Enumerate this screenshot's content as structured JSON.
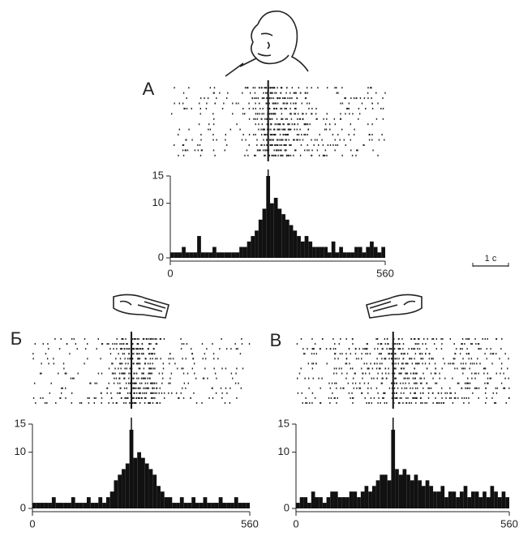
{
  "chart_data": [
    {
      "type": "histogram",
      "panel_label": "А",
      "bins": [
        0,
        10,
        20,
        30,
        40,
        50,
        60,
        70,
        80,
        90,
        100,
        110,
        120,
        130,
        140,
        150,
        160,
        170,
        180,
        190,
        200,
        210,
        220,
        230,
        240,
        250,
        260,
        270,
        280,
        290,
        300,
        310,
        320,
        330,
        340,
        350,
        360,
        370,
        380,
        390,
        400,
        410,
        420,
        430,
        440,
        450,
        460,
        470,
        480,
        490,
        500,
        510,
        520,
        530,
        540,
        550,
        560
      ],
      "values": [
        1,
        1,
        1,
        2,
        1,
        1,
        1,
        4,
        1,
        1,
        1,
        2,
        1,
        1,
        1,
        1,
        1,
        1,
        2,
        2,
        3,
        4,
        5,
        7,
        9,
        15,
        10,
        11,
        9,
        8,
        7,
        6,
        5,
        4,
        3,
        4,
        3,
        2,
        2,
        2,
        2,
        1,
        3,
        1,
        2,
        1,
        1,
        1,
        2,
        2,
        1,
        2,
        3,
        2,
        1,
        2
      ],
      "color": "#111111",
      "xlim": [
        0,
        560
      ],
      "xticks": [
        0,
        560
      ],
      "ylim": [
        0,
        15
      ],
      "yticks": [
        0,
        10,
        15
      ]
    },
    {
      "type": "histogram",
      "panel_label": "Б",
      "bins": [
        0,
        10,
        20,
        30,
        40,
        50,
        60,
        70,
        80,
        90,
        100,
        110,
        120,
        130,
        140,
        150,
        160,
        170,
        180,
        190,
        200,
        210,
        220,
        230,
        240,
        250,
        260,
        270,
        280,
        290,
        300,
        310,
        320,
        330,
        340,
        350,
        360,
        370,
        380,
        390,
        400,
        410,
        420,
        430,
        440,
        450,
        460,
        470,
        480,
        490,
        500,
        510,
        520,
        530,
        540,
        550,
        560
      ],
      "values": [
        1,
        1,
        1,
        1,
        1,
        2,
        1,
        1,
        1,
        1,
        2,
        1,
        1,
        1,
        2,
        1,
        1,
        2,
        1,
        2,
        3,
        5,
        6,
        7,
        8,
        14,
        9,
        10,
        9,
        8,
        7,
        6,
        4,
        3,
        2,
        2,
        1,
        1,
        2,
        1,
        1,
        2,
        1,
        1,
        2,
        1,
        1,
        1,
        2,
        1,
        1,
        1,
        2,
        1,
        1,
        1
      ],
      "color": "#111111",
      "xlim": [
        0,
        560
      ],
      "xticks": [
        0,
        560
      ],
      "ylim": [
        0,
        15
      ],
      "yticks": [
        0,
        10,
        15
      ]
    },
    {
      "type": "histogram",
      "panel_label": "В",
      "bins": [
        0,
        10,
        20,
        30,
        40,
        50,
        60,
        70,
        80,
        90,
        100,
        110,
        120,
        130,
        140,
        150,
        160,
        170,
        180,
        190,
        200,
        210,
        220,
        230,
        240,
        250,
        260,
        270,
        280,
        290,
        300,
        310,
        320,
        330,
        340,
        350,
        360,
        370,
        380,
        390,
        400,
        410,
        420,
        430,
        440,
        450,
        460,
        470,
        480,
        490,
        500,
        510,
        520,
        530,
        540,
        550,
        560
      ],
      "values": [
        1,
        2,
        2,
        1,
        3,
        2,
        2,
        1,
        2,
        3,
        3,
        2,
        2,
        2,
        3,
        3,
        2,
        3,
        4,
        3,
        4,
        5,
        6,
        6,
        5,
        14,
        7,
        6,
        7,
        6,
        5,
        6,
        5,
        4,
        5,
        4,
        3,
        3,
        4,
        2,
        3,
        3,
        2,
        3,
        4,
        2,
        3,
        3,
        2,
        3,
        2,
        4,
        3,
        2,
        3,
        2
      ],
      "color": "#111111",
      "xlim": [
        0,
        560
      ],
      "xticks": [
        0,
        560
      ],
      "ylim": [
        0,
        15
      ],
      "yticks": [
        0,
        10,
        15
      ]
    }
  ],
  "scale_bar": "1 с"
}
